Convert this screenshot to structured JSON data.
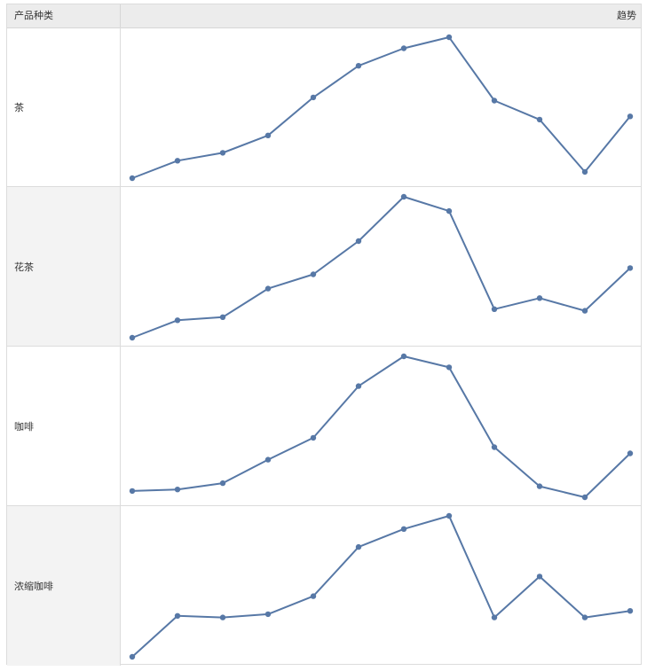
{
  "table": {
    "header": {
      "category_label": "产品种类",
      "trend_label": "趋势"
    }
  },
  "colors": {
    "line": "#5778a6",
    "header_bg": "#ececec",
    "alt_row_bg": "#f3f3f3"
  },
  "chart_data": {
    "type": "line",
    "small_multiples": true,
    "x": [
      1,
      2,
      3,
      4,
      5,
      6,
      7,
      8,
      9,
      10,
      11,
      12
    ],
    "series": [
      {
        "name": "茶",
        "values": [
          0,
          11,
          16,
          27,
          51,
          71,
          82,
          89,
          49,
          37,
          4,
          39
        ]
      },
      {
        "name": "花茶",
        "values": [
          0,
          11,
          13,
          31,
          40,
          61,
          89,
          80,
          18,
          25,
          17,
          44
        ]
      },
      {
        "name": "咖啡",
        "values": [
          0,
          1,
          5,
          20,
          34,
          67,
          86,
          79,
          28,
          3,
          -4,
          24
        ]
      },
      {
        "name": "浓缩咖啡",
        "values": [
          0,
          25,
          24,
          26,
          37,
          67,
          78,
          86,
          24,
          49,
          24,
          28
        ]
      }
    ]
  }
}
